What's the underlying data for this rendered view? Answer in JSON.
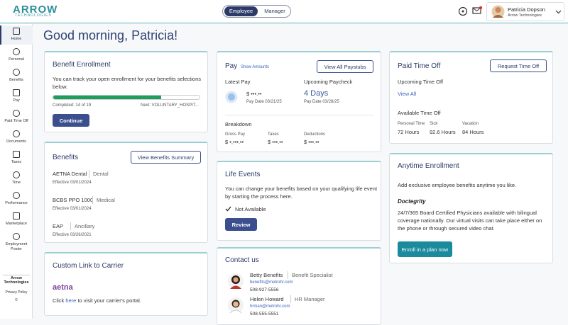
{
  "header": {
    "logo": "ARROW",
    "logo_sub": "TECHNOLOGIES",
    "toggle": [
      "Employee",
      "Manager"
    ],
    "user_name": "Patricia Dopson",
    "user_company": "Arrow Technologies"
  },
  "sidebar": {
    "items": [
      "Home",
      "Personal",
      "Benefits",
      "Pay",
      "Paid Time Off",
      "Documents",
      "Taxes",
      "Time",
      "Performance",
      "Marketplace",
      "Employment Poster"
    ],
    "footer": {
      "company": "Arrow Technologies",
      "privacy": "Privacy Policy",
      "copyright": "©"
    }
  },
  "greeting": "Good morning, Patricia!",
  "benefit_enrollment": {
    "title": "Benefit Enrollment",
    "text": "You can track your open enrollment for your benefits selections below.",
    "progress": {
      "label": "Completed:",
      "done": 14,
      "joiner": "of",
      "total": 19
    },
    "next": "Next: VOLUNTARY_HOSPIT...",
    "button": "Continue"
  },
  "benefits": {
    "title": "Benefits",
    "button": "View Benefits Summary",
    "items": [
      {
        "name": "AETNA Dental",
        "type": "Dental",
        "effective": "Effective 03/01/2024"
      },
      {
        "name": "BCBS PPO 1000",
        "type": "Medical",
        "effective": "Effective 03/01/2024"
      },
      {
        "name": "EAP",
        "type": "Ancillary",
        "effective": "Effective 03/26/2021"
      }
    ]
  },
  "carrier": {
    "title": "Custom Link to Carrier",
    "logo": "aetna",
    "text_before": "Click",
    "link": "here",
    "text_after": "to visit your carrier's portal."
  },
  "pay": {
    "title": "Pay",
    "show_amounts": "Show Amounts",
    "button": "View All Paystubs",
    "latest_label": "Latest Pay",
    "latest_amount": "$ •••.••",
    "latest_date": "Pay Date 03/21/25",
    "upcoming_label": "Upcoming Paycheck",
    "upcoming_value": "4 Days",
    "upcoming_date": "Pay Date 03/28/25",
    "breakdown_label": "Breakdown",
    "breakdown": [
      {
        "label": "Gross Pay",
        "value": "$ •,•••.••"
      },
      {
        "label": "Taxes",
        "value": "$ •••.••"
      },
      {
        "label": "Deductions",
        "value": "$ •••.••"
      }
    ]
  },
  "life_events": {
    "title": "Life Events",
    "text": "You can change your benefits based on your qualifying life event by starting the process here.",
    "status": "Not Available",
    "button": "Review"
  },
  "contact": {
    "title": "Contact us",
    "people": [
      {
        "name": "Betty Benefits",
        "role": "Benefit Specialist",
        "email": "benefits@metrohr.com",
        "phone": "508-927-5556"
      },
      {
        "name": "Helen Howard",
        "role": "HR Manager",
        "email": "hrman@metrohr.com",
        "phone": "508-555-5551"
      }
    ]
  },
  "pto": {
    "title": "Paid Time Off",
    "button": "Request Time Off",
    "upcoming": "Upcoming Time Off",
    "view_all": "View All",
    "available": "Available Time Off",
    "balances": [
      {
        "label": "Personal Time",
        "value": "72 Hours"
      },
      {
        "label": "Sick",
        "value": "92.6 Hours"
      },
      {
        "label": "Vacation",
        "value": "84 Hours"
      }
    ]
  },
  "anytime": {
    "title": "Anytime Enrollment",
    "text": "Add exclusive employee benefits anytime you like.",
    "logo": "Doctegrity",
    "description": "24/7/365 Board Certified Physicians available with bilingual coverage nationally. Our virtual visits can take place either on the phone or through secured video chat.",
    "button": "Enroll in a plan now"
  }
}
